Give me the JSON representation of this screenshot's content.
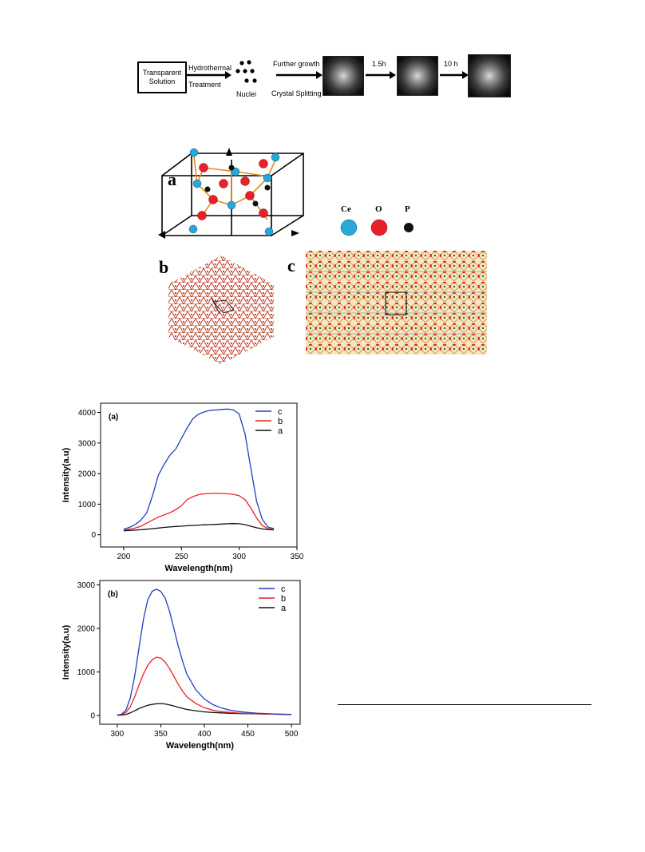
{
  "scheme": {
    "box_lines": [
      "Transparent",
      "Solution"
    ],
    "step1_lines": [
      "Hydrothermal",
      "Treatment"
    ],
    "nuclei": "Nuclei",
    "further_growth": "Further growth",
    "crystal_splitting": "Crystal Splitting",
    "t1": "1.5h",
    "t2": "10 h"
  },
  "structure": {
    "panel_a": "a",
    "panel_b": "b",
    "panel_c": "c",
    "legend": [
      {
        "label": "Ce",
        "color": "#2aa7d9"
      },
      {
        "label": "O",
        "color": "#e8202a"
      },
      {
        "label": "P",
        "color": "#111111"
      }
    ]
  },
  "colors": {
    "c": "#1f3fbf",
    "b": "#ee2222",
    "a": "#111111"
  },
  "chart_data": [
    {
      "type": "line",
      "panel_label": "(a)",
      "xlabel": "Wavelength(nm)",
      "ylabel": "Intensity(a.u)",
      "xlim": [
        180,
        350
      ],
      "ylim": [
        -400,
        4300
      ],
      "xticks": [
        200,
        250,
        300,
        350
      ],
      "yticks": [
        0,
        1000,
        2000,
        3000,
        4000
      ],
      "legend_position": "top-right",
      "series": [
        {
          "name": "c",
          "x": [
            200,
            205,
            210,
            215,
            220,
            225,
            230,
            235,
            240,
            245,
            250,
            255,
            260,
            265,
            270,
            275,
            280,
            285,
            290,
            295,
            300,
            305,
            310,
            315,
            320,
            325,
            330
          ],
          "values": [
            180,
            240,
            330,
            480,
            720,
            1280,
            1950,
            2300,
            2600,
            2800,
            3150,
            3500,
            3800,
            3950,
            4020,
            4070,
            4080,
            4100,
            4110,
            4080,
            3950,
            3300,
            2200,
            1100,
            500,
            250,
            200
          ]
        },
        {
          "name": "b",
          "x": [
            200,
            205,
            210,
            215,
            220,
            225,
            230,
            235,
            240,
            245,
            250,
            255,
            260,
            265,
            270,
            275,
            280,
            285,
            290,
            295,
            300,
            305,
            310,
            315,
            320,
            325,
            330
          ],
          "values": [
            150,
            180,
            220,
            280,
            380,
            480,
            580,
            650,
            720,
            820,
            950,
            1150,
            1250,
            1310,
            1340,
            1350,
            1360,
            1350,
            1340,
            1320,
            1280,
            1150,
            880,
            550,
            300,
            200,
            180
          ]
        },
        {
          "name": "a",
          "x": [
            200,
            205,
            210,
            215,
            220,
            225,
            230,
            235,
            240,
            245,
            250,
            255,
            260,
            265,
            270,
            275,
            280,
            285,
            290,
            295,
            300,
            305,
            310,
            315,
            320,
            325,
            330
          ],
          "values": [
            130,
            140,
            150,
            165,
            180,
            200,
            220,
            240,
            255,
            270,
            280,
            295,
            305,
            315,
            325,
            330,
            340,
            350,
            360,
            365,
            360,
            330,
            280,
            230,
            190,
            170,
            160
          ]
        }
      ]
    },
    {
      "type": "line",
      "panel_label": "(b)",
      "xlabel": "Wavelength(nm)",
      "ylabel": "Intensity(a.u)",
      "xlim": [
        280,
        510
      ],
      "ylim": [
        -200,
        3100
      ],
      "xticks": [
        300,
        350,
        400,
        450,
        500
      ],
      "yticks": [
        0,
        1000,
        2000,
        3000
      ],
      "legend_position": "top-right",
      "series": [
        {
          "name": "c",
          "x": [
            300,
            305,
            310,
            315,
            320,
            325,
            330,
            335,
            340,
            345,
            350,
            355,
            360,
            365,
            370,
            375,
            380,
            390,
            400,
            410,
            420,
            430,
            440,
            450,
            460,
            470,
            480,
            490,
            500
          ],
          "values": [
            10,
            30,
            120,
            400,
            900,
            1550,
            2200,
            2650,
            2850,
            2900,
            2850,
            2700,
            2400,
            2000,
            1600,
            1250,
            950,
            600,
            380,
            250,
            170,
            120,
            90,
            70,
            55,
            45,
            35,
            30,
            25
          ]
        },
        {
          "name": "b",
          "x": [
            300,
            305,
            310,
            315,
            320,
            325,
            330,
            335,
            340,
            345,
            350,
            355,
            360,
            365,
            370,
            375,
            380,
            390,
            400,
            410,
            420,
            430,
            440,
            450,
            460,
            470,
            480,
            490,
            500
          ],
          "values": [
            10,
            25,
            70,
            200,
            430,
            700,
            950,
            1150,
            1280,
            1340,
            1320,
            1230,
            1080,
            900,
            720,
            560,
            430,
            280,
            180,
            120,
            90,
            70,
            55,
            45,
            40,
            35,
            30,
            25,
            20
          ]
        },
        {
          "name": "a",
          "x": [
            300,
            305,
            310,
            315,
            320,
            325,
            330,
            335,
            340,
            345,
            350,
            355,
            360,
            365,
            370,
            375,
            380,
            390,
            400,
            410,
            420,
            430,
            440,
            450,
            460,
            470,
            480,
            490,
            500
          ],
          "values": [
            5,
            10,
            25,
            60,
            110,
            160,
            200,
            235,
            255,
            270,
            275,
            265,
            245,
            220,
            190,
            165,
            140,
            110,
            85,
            70,
            60,
            50,
            45,
            40,
            38,
            35,
            32,
            30,
            28
          ]
        }
      ]
    }
  ]
}
